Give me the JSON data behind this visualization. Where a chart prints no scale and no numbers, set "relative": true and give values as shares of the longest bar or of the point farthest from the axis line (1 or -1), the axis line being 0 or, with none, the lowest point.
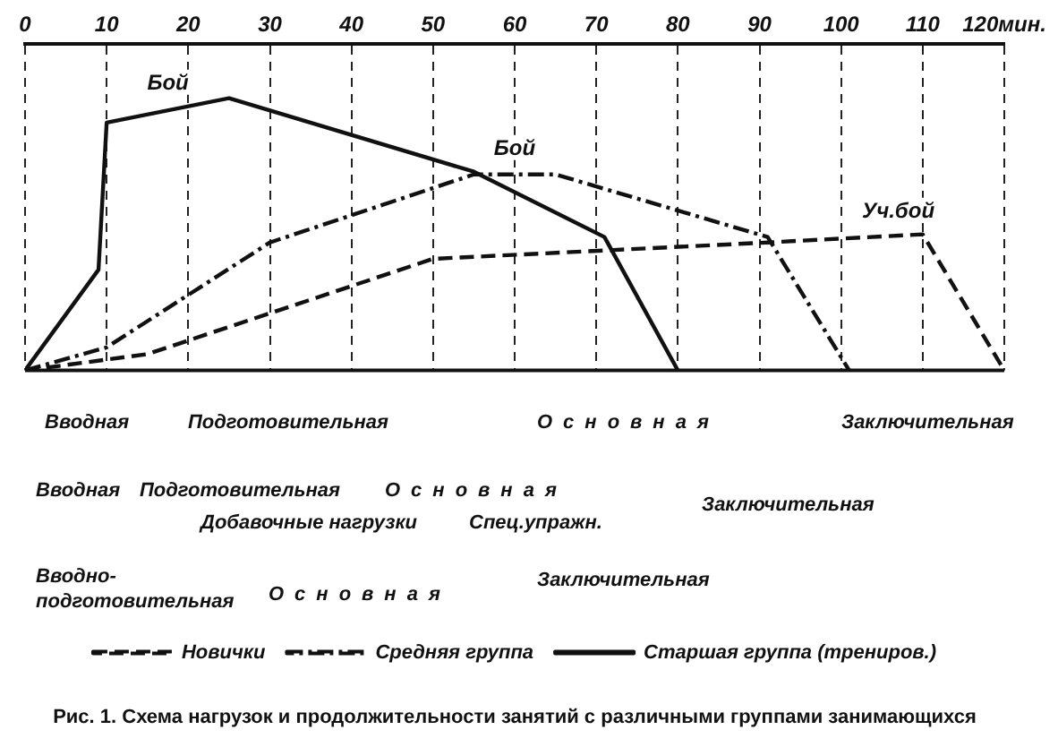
{
  "chart_data": {
    "type": "line",
    "title": "Рис. 1. Схема нагрузок и продолжительности занятий с различными группами занимающихся",
    "relative": true,
    "xlim": [
      0,
      120
    ],
    "xticks": [
      0,
      10,
      20,
      30,
      40,
      50,
      60,
      70,
      80,
      90,
      100,
      110,
      {
        "value": 120,
        "label": "120мин."
      }
    ],
    "grid": "x",
    "legend": "bottom",
    "marker": "none",
    "series": [
      {
        "name": "Новички",
        "color": "#111111",
        "line_style": "dashed",
        "x": [
          0,
          15,
          50,
          91,
          110,
          120
        ],
        "values": [
          0,
          0.06,
          0.41,
          0.47,
          0.5,
          0
        ]
      },
      {
        "name": "Средняя группа",
        "color": "#111111",
        "line_style": "dashdot",
        "x": [
          0,
          10,
          30,
          55,
          65,
          91,
          101
        ],
        "values": [
          0,
          0.085,
          0.47,
          0.72,
          0.72,
          0.49,
          0
        ]
      },
      {
        "name": "Старшая группа (трениров.)",
        "color": "#111111",
        "line_style": "solid",
        "x": [
          0,
          9,
          10,
          25,
          55,
          71,
          80
        ],
        "values": [
          0,
          0.37,
          0.91,
          1,
          0.73,
          0.49,
          0
        ]
      }
    ],
    "annotations": [
      {
        "text": "Бой",
        "x": 17.5,
        "y": 0.96
      },
      {
        "text": "Бой",
        "x": 60,
        "y": 0.72
      },
      {
        "text": "Уч.бой",
        "x": 107,
        "y": 0.49
      },
      "Вводная",
      "Подготовительная",
      "Основная",
      "Заключительная",
      "Вводная",
      "Подготовительная",
      "Основная",
      "Добавочные нагрузки",
      "Спец.упражн.",
      "Заключительная",
      "Вводно-подготовительная",
      "Основная",
      "Заключительная"
    ]
  }
}
